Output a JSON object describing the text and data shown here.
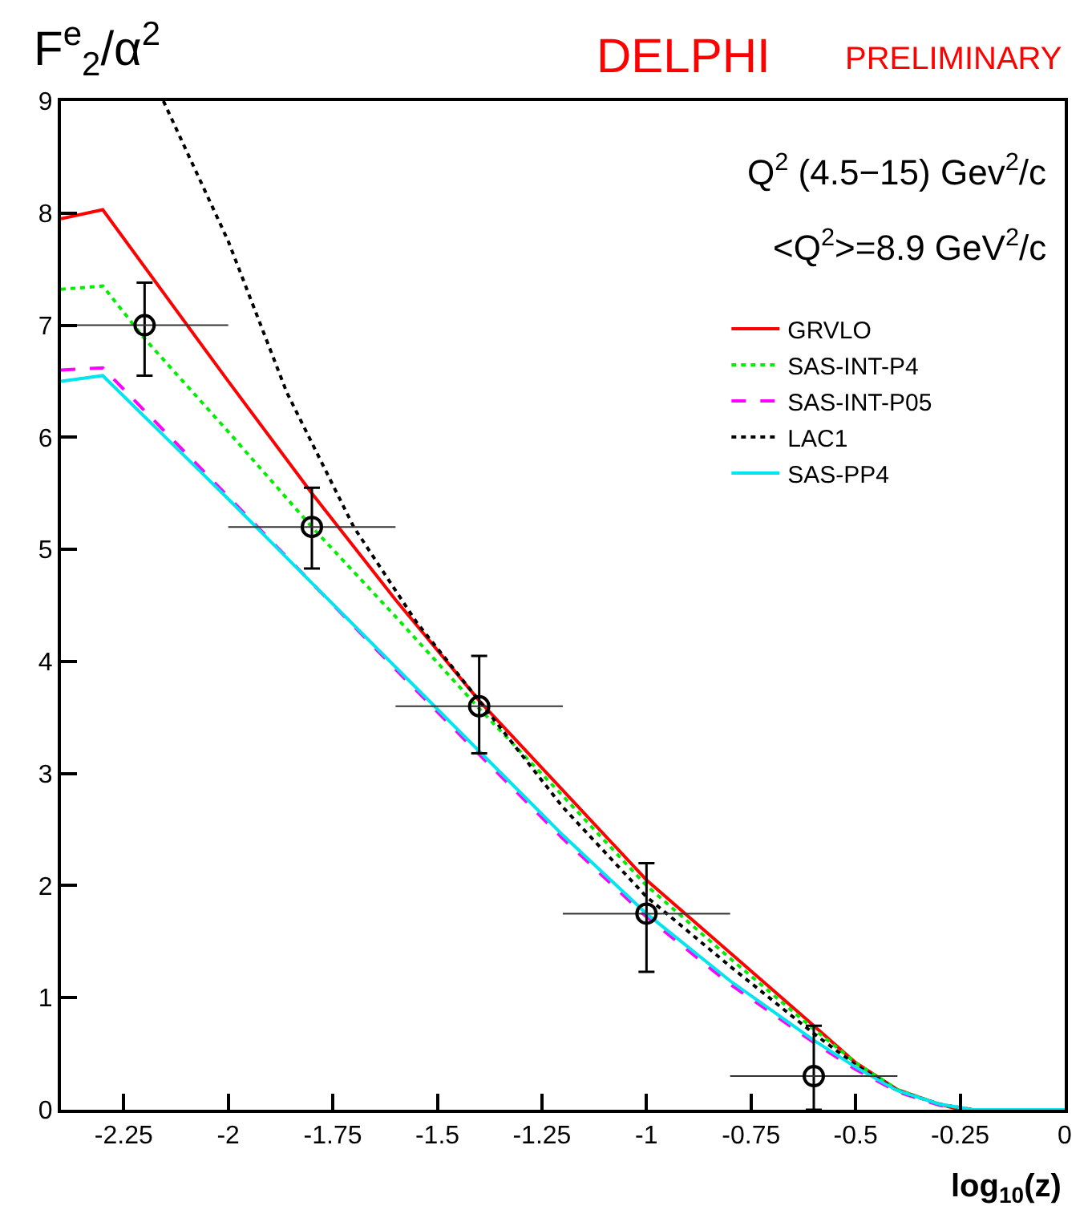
{
  "chart_data": {
    "type": "line",
    "title": "DELPHI",
    "subtitle": "PRELIMINARY",
    "ylabel": "F$^{e}$$_{2}$/α$^{2}$",
    "xlabel": "log$_{10}$(z)",
    "annotations": [
      "Q$^{2}$ (4.5−15) Gev$^{2}$/c",
      "<Q$^{2}$>=8.9 GeV$^{2}$/c"
    ],
    "xlim": [
      -2.4,
      0
    ],
    "xticks": [
      -2.25,
      -2,
      -1.75,
      -1.5,
      -1.25,
      -1,
      -0.75,
      -0.5,
      -0.25,
      0
    ],
    "ylim": [
      0,
      9
    ],
    "yticks": [
      0,
      1,
      2,
      3,
      4,
      5,
      6,
      7,
      8,
      9
    ],
    "legend": "top right",
    "series": [
      {
        "name": "GRVLO",
        "color": "#ff0000",
        "line_style": "solid",
        "marker": "none",
        "x": [
          -2.4,
          -2.3,
          -2.0,
          -1.8,
          -1.6,
          -1.4,
          -1.2,
          -1.0,
          -0.8,
          -0.6,
          -0.5,
          -0.4,
          -0.3,
          -0.25,
          -0.2,
          0
        ],
        "values": [
          7.95,
          8.03,
          6.5,
          5.5,
          4.55,
          3.65,
          2.85,
          2.05,
          1.4,
          0.75,
          0.42,
          0.18,
          0.05,
          0,
          0,
          0
        ]
      },
      {
        "name": "SAS-INT-P4",
        "color": "#00ee00",
        "line_style": "dotted",
        "marker": "none",
        "x": [
          -2.4,
          -2.3,
          -2.2,
          -2.0,
          -1.8,
          -1.6,
          -1.4,
          -1.2,
          -1.0,
          -0.8,
          -0.6,
          -0.5,
          -0.4,
          -0.3,
          -0.22,
          0
        ],
        "values": [
          7.32,
          7.35,
          6.88,
          6.05,
          5.2,
          4.4,
          3.58,
          2.8,
          2.0,
          1.35,
          0.72,
          0.42,
          0.18,
          0.05,
          0,
          0
        ]
      },
      {
        "name": "SAS-INT-P05",
        "color": "#ff00ff",
        "line_style": "dashed",
        "marker": "none",
        "x": [
          -2.4,
          -2.3,
          -2.0,
          -1.8,
          -1.6,
          -1.4,
          -1.2,
          -1.0,
          -0.8,
          -0.6,
          -0.5,
          -0.4,
          -0.3,
          -0.22,
          0
        ],
        "values": [
          6.6,
          6.62,
          5.47,
          4.7,
          3.93,
          3.17,
          2.42,
          1.72,
          1.12,
          0.6,
          0.36,
          0.16,
          0.04,
          0,
          0
        ]
      },
      {
        "name": "LAC1",
        "color": "#000000",
        "line_style": "dotted",
        "marker": "none",
        "x": [
          -2.155,
          -2.0,
          -1.86,
          -1.7,
          -1.55,
          -1.4,
          -1.2,
          -1.0,
          -0.8,
          -0.6,
          -0.5,
          -0.4,
          -0.3,
          -0.22,
          0
        ],
        "values": [
          9,
          7.75,
          6.4,
          5.2,
          4.35,
          3.65,
          2.7,
          1.9,
          1.28,
          0.68,
          0.4,
          0.17,
          0.05,
          0,
          0
        ]
      },
      {
        "name": "SAS-PP4",
        "color": "#00e5ee",
        "line_style": "solid",
        "marker": "none",
        "x": [
          -2.4,
          -2.3,
          -2.0,
          -1.8,
          -1.6,
          -1.4,
          -1.2,
          -1.0,
          -0.8,
          -0.6,
          -0.5,
          -0.4,
          -0.3,
          -0.22,
          0
        ],
        "values": [
          6.5,
          6.55,
          5.45,
          4.7,
          3.95,
          3.2,
          2.45,
          1.75,
          1.15,
          0.62,
          0.38,
          0.17,
          0.05,
          0,
          0
        ]
      },
      {
        "type": "scatter",
        "color": "#000000",
        "marker": "circle",
        "x": [
          -2.2,
          -1.8,
          -1.4,
          -1.0,
          -0.6
        ],
        "values": [
          7.0,
          5.2,
          3.6,
          1.75,
          0.3
        ],
        "errors": [
          [
            6.55,
            7.38
          ],
          [
            4.83,
            5.55
          ],
          [
            3.18,
            4.05
          ],
          [
            1.23,
            2.2
          ],
          [
            0,
            0.75
          ]
        ],
        "xerrors": [
          [
            -2.4,
            -2.0
          ],
          [
            -2.0,
            -1.6
          ],
          [
            -1.6,
            -1.2
          ],
          [
            -1.2,
            -0.8
          ],
          [
            -0.8,
            -0.4
          ]
        ]
      }
    ]
  }
}
